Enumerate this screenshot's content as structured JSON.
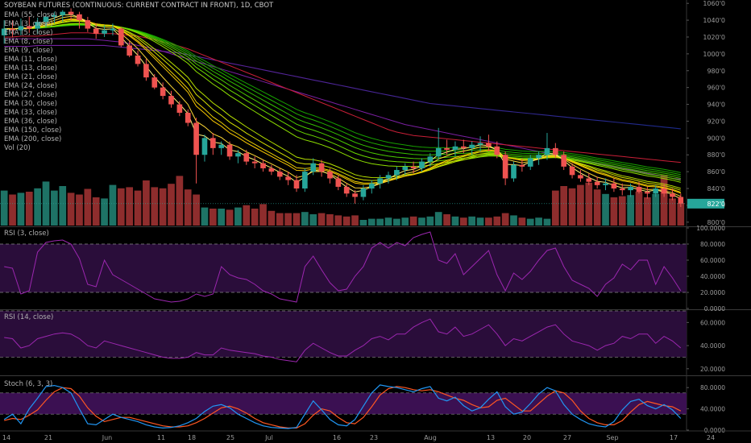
{
  "colors": {
    "background": "#000000",
    "up": "#26a69a",
    "down": "#ef5350",
    "vol_up": "#1e7366",
    "vol_down": "#8e2d2d",
    "rsi": "#9c27b0",
    "rsi_band": "#2a0d3a",
    "stoch_k": "#2196f3",
    "stoch_d": "#ff5722",
    "ema150": "#b4213f",
    "ema200_a": "#7b1fa2",
    "ema200_b": "#1b2a8a",
    "ema55": "#c91f37"
  },
  "header": {
    "title": "SOYBEAN FUTURES (CONTINUOUS: CURRENT CONTRACT IN FRONT), 1D, CBOT"
  },
  "legend": {
    "items": [
      "EMA (55, close)",
      "EMA (3, close)",
      "EMA (5, close)",
      "EMA (8, close)",
      "EMA (9, close)",
      "EMA (11, close)",
      "EMA (13, close)",
      "EMA (21, close)",
      "EMA (24, close)",
      "EMA (27, close)",
      "EMA (30, close)",
      "EMA (33, close)",
      "EMA (36, close)",
      "EMA (150, close)",
      "EMA (200, close)",
      "Vol (20)"
    ]
  },
  "panes": {
    "rsi3": "RSI (3, close)",
    "rsi14": "RSI (14, close)",
    "stoch": "Stoch (6, 3, 3)"
  },
  "price_axis": {
    "ticks": [
      "1060'0",
      "1040'0",
      "1020'0",
      "1000'0",
      "980'0",
      "960'0",
      "940'0",
      "920'0",
      "900'0",
      "880'0",
      "860'0",
      "840'0",
      "820'0",
      "800'0"
    ],
    "last_price": "822'0"
  },
  "rsi3_axis": {
    "ticks": [
      "100.0000",
      "80.0000",
      "60.0000",
      "40.0000",
      "20.0000",
      "0.0000"
    ]
  },
  "rsi14_axis": {
    "ticks": [
      "60.0000",
      "40.0000",
      "20.0000"
    ]
  },
  "stoch_axis": {
    "ticks": [
      "80.0000",
      "40.0000",
      "0.0000"
    ]
  },
  "time_axis": {
    "labels": [
      "14",
      "21",
      "Jun",
      "11",
      "18",
      "25",
      "Jul",
      "16",
      "23",
      "Aug",
      "13",
      "20",
      "27",
      "Sep",
      "17",
      "24"
    ]
  },
  "chart_data": {
    "type": "line",
    "bars": [
      {
        "o": 1022,
        "h": 1040,
        "l": 1012,
        "c": 1030
      },
      {
        "o": 1030,
        "h": 1040,
        "l": 1020,
        "c": 1028
      },
      {
        "o": 1028,
        "h": 1042,
        "l": 1022,
        "c": 1033
      },
      {
        "o": 1033,
        "h": 1044,
        "l": 1025,
        "c": 1030
      },
      {
        "o": 1030,
        "h": 1043,
        "l": 1024,
        "c": 1038
      },
      {
        "o": 1038,
        "h": 1048,
        "l": 1031,
        "c": 1044
      },
      {
        "o": 1044,
        "h": 1050,
        "l": 1036,
        "c": 1046
      },
      {
        "o": 1046,
        "h": 1052,
        "l": 1038,
        "c": 1050
      },
      {
        "o": 1050,
        "h": 1054,
        "l": 1040,
        "c": 1047
      },
      {
        "o": 1047,
        "h": 1050,
        "l": 1030,
        "c": 1040
      },
      {
        "o": 1040,
        "h": 1044,
        "l": 1026,
        "c": 1030
      },
      {
        "o": 1030,
        "h": 1036,
        "l": 1018,
        "c": 1024
      },
      {
        "o": 1024,
        "h": 1034,
        "l": 1020,
        "c": 1028
      },
      {
        "o": 1028,
        "h": 1036,
        "l": 1022,
        "c": 1030
      },
      {
        "o": 1030,
        "h": 1032,
        "l": 1008,
        "c": 1010
      },
      {
        "o": 1010,
        "h": 1016,
        "l": 996,
        "c": 998
      },
      {
        "o": 998,
        "h": 1004,
        "l": 985,
        "c": 988
      },
      {
        "o": 988,
        "h": 994,
        "l": 968,
        "c": 972
      },
      {
        "o": 972,
        "h": 976,
        "l": 958,
        "c": 960
      },
      {
        "o": 960,
        "h": 966,
        "l": 946,
        "c": 950
      },
      {
        "o": 950,
        "h": 956,
        "l": 936,
        "c": 940
      },
      {
        "o": 940,
        "h": 944,
        "l": 926,
        "c": 930
      },
      {
        "o": 930,
        "h": 934,
        "l": 914,
        "c": 918
      },
      {
        "o": 918,
        "h": 924,
        "l": 846,
        "c": 880
      },
      {
        "o": 880,
        "h": 904,
        "l": 872,
        "c": 900
      },
      {
        "o": 900,
        "h": 906,
        "l": 880,
        "c": 888
      },
      {
        "o": 888,
        "h": 896,
        "l": 880,
        "c": 892
      },
      {
        "o": 892,
        "h": 896,
        "l": 874,
        "c": 878
      },
      {
        "o": 878,
        "h": 886,
        "l": 870,
        "c": 882
      },
      {
        "o": 882,
        "h": 886,
        "l": 868,
        "c": 872
      },
      {
        "o": 872,
        "h": 878,
        "l": 864,
        "c": 870
      },
      {
        "o": 870,
        "h": 874,
        "l": 860,
        "c": 864
      },
      {
        "o": 864,
        "h": 868,
        "l": 856,
        "c": 860
      },
      {
        "o": 860,
        "h": 864,
        "l": 850,
        "c": 854
      },
      {
        "o": 854,
        "h": 860,
        "l": 844,
        "c": 850
      },
      {
        "o": 850,
        "h": 856,
        "l": 836,
        "c": 840
      },
      {
        "o": 840,
        "h": 864,
        "l": 836,
        "c": 860
      },
      {
        "o": 860,
        "h": 876,
        "l": 856,
        "c": 870
      },
      {
        "o": 870,
        "h": 874,
        "l": 854,
        "c": 860
      },
      {
        "o": 860,
        "h": 864,
        "l": 846,
        "c": 852
      },
      {
        "o": 852,
        "h": 856,
        "l": 838,
        "c": 842
      },
      {
        "o": 842,
        "h": 846,
        "l": 830,
        "c": 834
      },
      {
        "o": 834,
        "h": 838,
        "l": 822,
        "c": 830
      },
      {
        "o": 830,
        "h": 844,
        "l": 826,
        "c": 840
      },
      {
        "o": 840,
        "h": 850,
        "l": 834,
        "c": 846
      },
      {
        "o": 846,
        "h": 856,
        "l": 840,
        "c": 852
      },
      {
        "o": 852,
        "h": 860,
        "l": 846,
        "c": 856
      },
      {
        "o": 856,
        "h": 866,
        "l": 850,
        "c": 862
      },
      {
        "o": 862,
        "h": 870,
        "l": 856,
        "c": 866
      },
      {
        "o": 866,
        "h": 872,
        "l": 858,
        "c": 864
      },
      {
        "o": 864,
        "h": 876,
        "l": 860,
        "c": 872
      },
      {
        "o": 872,
        "h": 882,
        "l": 866,
        "c": 878
      },
      {
        "o": 878,
        "h": 912,
        "l": 874,
        "c": 888
      },
      {
        "o": 888,
        "h": 898,
        "l": 880,
        "c": 886
      },
      {
        "o": 886,
        "h": 896,
        "l": 878,
        "c": 890
      },
      {
        "o": 890,
        "h": 898,
        "l": 882,
        "c": 888
      },
      {
        "o": 888,
        "h": 896,
        "l": 880,
        "c": 892
      },
      {
        "o": 892,
        "h": 902,
        "l": 884,
        "c": 894
      },
      {
        "o": 894,
        "h": 904,
        "l": 884,
        "c": 890
      },
      {
        "o": 890,
        "h": 896,
        "l": 876,
        "c": 880
      },
      {
        "o": 880,
        "h": 884,
        "l": 844,
        "c": 852
      },
      {
        "o": 852,
        "h": 872,
        "l": 848,
        "c": 868
      },
      {
        "o": 868,
        "h": 876,
        "l": 860,
        "c": 866
      },
      {
        "o": 866,
        "h": 880,
        "l": 862,
        "c": 876
      },
      {
        "o": 876,
        "h": 884,
        "l": 868,
        "c": 880
      },
      {
        "o": 880,
        "h": 906,
        "l": 874,
        "c": 888
      },
      {
        "o": 888,
        "h": 894,
        "l": 876,
        "c": 880
      },
      {
        "o": 880,
        "h": 884,
        "l": 862,
        "c": 866
      },
      {
        "o": 866,
        "h": 870,
        "l": 852,
        "c": 856
      },
      {
        "o": 856,
        "h": 862,
        "l": 848,
        "c": 852
      },
      {
        "o": 852,
        "h": 858,
        "l": 844,
        "c": 848
      },
      {
        "o": 848,
        "h": 854,
        "l": 840,
        "c": 844
      },
      {
        "o": 844,
        "h": 852,
        "l": 838,
        "c": 846
      },
      {
        "o": 846,
        "h": 852,
        "l": 836,
        "c": 840
      },
      {
        "o": 840,
        "h": 846,
        "l": 832,
        "c": 838
      },
      {
        "o": 838,
        "h": 846,
        "l": 830,
        "c": 842
      },
      {
        "o": 842,
        "h": 848,
        "l": 834,
        "c": 836
      },
      {
        "o": 836,
        "h": 842,
        "l": 828,
        "c": 834
      },
      {
        "o": 834,
        "h": 844,
        "l": 830,
        "c": 840
      },
      {
        "o": 840,
        "h": 846,
        "l": 830,
        "c": 834
      },
      {
        "o": 834,
        "h": 840,
        "l": 826,
        "c": 830
      },
      {
        "o": 830,
        "h": 834,
        "l": 818,
        "c": 822
      }
    ],
    "volume": [
      0.62,
      0.55,
      0.58,
      0.6,
      0.66,
      0.78,
      0.62,
      0.7,
      0.58,
      0.55,
      0.65,
      0.5,
      0.48,
      0.72,
      0.66,
      0.68,
      0.62,
      0.8,
      0.68,
      0.66,
      0.74,
      0.88,
      0.64,
      0.55,
      0.32,
      0.3,
      0.3,
      0.28,
      0.32,
      0.36,
      0.3,
      0.38,
      0.26,
      0.22,
      0.22,
      0.22,
      0.24,
      0.2,
      0.22,
      0.2,
      0.18,
      0.16,
      0.18,
      0.1,
      0.12,
      0.12,
      0.14,
      0.12,
      0.14,
      0.16,
      0.14,
      0.16,
      0.24,
      0.2,
      0.16,
      0.14,
      0.16,
      0.14,
      0.14,
      0.16,
      0.22,
      0.18,
      0.14,
      0.12,
      0.14,
      0.12,
      0.62,
      0.7,
      0.66,
      0.72,
      0.76,
      0.64,
      0.56,
      0.5,
      0.52,
      0.54,
      0.6,
      0.5,
      0.56,
      0.9,
      0.48,
      0.4
    ],
    "ema55": [
      1020,
      1020,
      1021,
      1021,
      1021,
      1022,
      1023,
      1024,
      1025,
      1025,
      1025,
      1024,
      1024,
      1024,
      1023,
      1022,
      1021,
      1019,
      1017,
      1014,
      1012,
      1009,
      1006,
      1002,
      998,
      994,
      990,
      986,
      982,
      978,
      974,
      970,
      966,
      962,
      958,
      954,
      950,
      946,
      942,
      938,
      934,
      930,
      926,
      922,
      918,
      914,
      910,
      907,
      905,
      903,
      902,
      901,
      900,
      899,
      898,
      897,
      896,
      895,
      894,
      893,
      892,
      891,
      890,
      889,
      888,
      887,
      886,
      885,
      884,
      883,
      882,
      881,
      880,
      879,
      878,
      877,
      876,
      875,
      874,
      873,
      872,
      871
    ],
    "ema150": [
      1018,
      1018,
      1018,
      1018,
      1018,
      1018,
      1018,
      1018,
      1018,
      1018,
      1018,
      1017,
      1016,
      1015,
      1014,
      1012,
      1010,
      1008,
      1006,
      1003,
      1000,
      997,
      994,
      991,
      988,
      985,
      982,
      979,
      976,
      973,
      970,
      967,
      964,
      961,
      958,
      955,
      952,
      949,
      946,
      943,
      940,
      937,
      934,
      931,
      928,
      925,
      922,
      919,
      916,
      914,
      912,
      910,
      908,
      906,
      904,
      902,
      900,
      898,
      896,
      894,
      892,
      890,
      888,
      886,
      884,
      882,
      880,
      878,
      876,
      874,
      872,
      870,
      868,
      866,
      864,
      862,
      860,
      858,
      856,
      854,
      852,
      851
    ],
    "ema200": [
      1009,
      1009,
      1009,
      1009,
      1010,
      1010,
      1010,
      1010,
      1010,
      1010,
      1010,
      1010,
      1010,
      1009,
      1008,
      1007,
      1006,
      1005,
      1004,
      1003,
      1002,
      1001,
      999,
      997,
      995,
      993,
      991,
      989,
      987,
      985,
      983,
      981,
      979,
      977,
      975,
      973,
      971,
      969,
      967,
      965,
      963,
      961,
      959,
      957,
      955,
      953,
      951,
      949,
      947,
      945,
      943,
      941,
      940,
      939,
      938,
      937,
      936,
      935,
      934,
      933,
      932,
      931,
      930,
      929,
      928,
      927,
      926,
      925,
      924,
      923,
      922,
      921,
      920,
      919,
      918,
      917,
      916,
      915,
      914,
      913,
      912,
      911
    ],
    "rsi3": [
      52,
      50,
      18,
      22,
      70,
      82,
      84,
      85,
      80,
      62,
      30,
      27,
      60,
      42,
      36,
      30,
      24,
      18,
      12,
      10,
      8,
      9,
      12,
      18,
      15,
      18,
      52,
      42,
      38,
      36,
      30,
      22,
      18,
      12,
      10,
      8,
      52,
      65,
      48,
      32,
      22,
      24,
      40,
      52,
      75,
      82,
      75,
      82,
      78,
      88,
      92,
      95,
      60,
      56,
      68,
      42,
      52,
      62,
      72,
      42,
      22,
      44,
      36,
      46,
      60,
      72,
      75,
      52,
      35,
      30,
      25,
      15,
      30,
      38,
      55,
      48,
      60,
      60,
      30,
      52,
      38,
      22
    ],
    "rsi14": [
      47,
      46,
      38,
      40,
      46,
      48,
      50,
      51,
      50,
      46,
      40,
      38,
      44,
      42,
      40,
      38,
      36,
      34,
      32,
      30,
      29,
      29,
      30,
      34,
      32,
      32,
      38,
      36,
      35,
      34,
      33,
      31,
      30,
      28,
      27,
      26,
      36,
      42,
      38,
      34,
      31,
      31,
      36,
      40,
      46,
      48,
      45,
      50,
      50,
      56,
      60,
      63,
      52,
      50,
      56,
      48,
      50,
      54,
      58,
      50,
      40,
      46,
      44,
      48,
      52,
      56,
      58,
      50,
      44,
      42,
      40,
      36,
      40,
      42,
      48,
      46,
      50,
      50,
      42,
      48,
      44,
      38
    ],
    "stoch_k": [
      20,
      30,
      12,
      40,
      60,
      82,
      84,
      80,
      70,
      40,
      12,
      10,
      20,
      30,
      24,
      20,
      16,
      10,
      6,
      4,
      5,
      8,
      14,
      22,
      35,
      45,
      48,
      42,
      30,
      22,
      14,
      8,
      5,
      4,
      3,
      5,
      30,
      55,
      38,
      20,
      10,
      8,
      20,
      45,
      70,
      85,
      82,
      80,
      76,
      72,
      78,
      82,
      60,
      55,
      62,
      46,
      36,
      42,
      58,
      72,
      44,
      30,
      34,
      50,
      68,
      80,
      74,
      48,
      30,
      20,
      12,
      8,
      6,
      16,
      38,
      54,
      58,
      46,
      40,
      48,
      38,
      22
    ],
    "stoch_d": [
      18,
      22,
      20,
      28,
      38,
      56,
      72,
      80,
      78,
      64,
      42,
      26,
      16,
      20,
      24,
      24,
      20,
      16,
      12,
      8,
      6,
      6,
      8,
      14,
      22,
      32,
      42,
      45,
      40,
      32,
      22,
      14,
      10,
      6,
      4,
      4,
      12,
      28,
      40,
      36,
      24,
      14,
      12,
      24,
      44,
      66,
      78,
      82,
      80,
      76,
      74,
      76,
      72,
      66,
      60,
      56,
      48,
      42,
      44,
      56,
      60,
      48,
      36,
      36,
      50,
      64,
      74,
      70,
      56,
      36,
      22,
      14,
      10,
      10,
      18,
      34,
      48,
      54,
      50,
      46,
      44,
      36
    ],
    "ribbon_offsets": [
      {
        "p": 3,
        "c": "#fff176"
      },
      {
        "p": 5,
        "c": "#fdd835"
      },
      {
        "p": 8,
        "c": "#f9c700"
      },
      {
        "p": 9,
        "c": "#ecd000"
      },
      {
        "p": 11,
        "c": "#d4df00"
      },
      {
        "p": 13,
        "c": "#b7e100"
      },
      {
        "p": 21,
        "c": "#8ee000"
      },
      {
        "p": 24,
        "c": "#6ad800"
      },
      {
        "p": 27,
        "c": "#4ccc00"
      },
      {
        "p": 30,
        "c": "#36c000"
      },
      {
        "p": 33,
        "c": "#22b000"
      },
      {
        "p": 36,
        "c": "#17a000"
      }
    ],
    "price_range": [
      796,
      1064
    ],
    "rsi3_range": [
      0,
      100
    ],
    "rsi14_range": [
      15,
      70
    ],
    "stoch_range": [
      0,
      100
    ]
  }
}
